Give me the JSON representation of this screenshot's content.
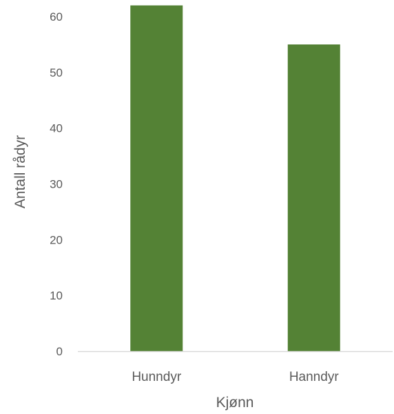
{
  "chart_data": {
    "type": "bar",
    "categories": [
      "Hunndyr",
      "Hanndyr"
    ],
    "values": [
      62,
      55
    ],
    "xlabel": "Kjønn",
    "ylabel": "Antall rådyr",
    "ylim": [
      0,
      60
    ],
    "yticks": [
      0,
      10,
      20,
      30,
      40,
      50,
      60
    ],
    "grid": false,
    "legend": "none",
    "bar_color": "#548235",
    "axis_color": "#d9d9d9",
    "text_color": "#595959"
  }
}
